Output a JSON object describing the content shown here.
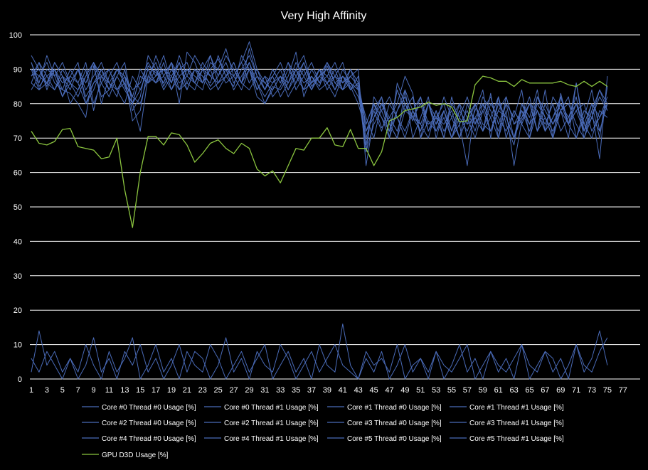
{
  "chart_data": {
    "type": "line",
    "title": "Very High Affinity",
    "xlabel": "",
    "ylabel": "",
    "ylim": [
      0,
      100
    ],
    "yticks": [
      0,
      10,
      20,
      30,
      40,
      50,
      60,
      70,
      80,
      90,
      100
    ],
    "xlim": [
      1,
      77
    ],
    "xticks": [
      1,
      3,
      5,
      7,
      9,
      11,
      13,
      15,
      17,
      19,
      21,
      23,
      25,
      27,
      29,
      31,
      33,
      35,
      37,
      39,
      41,
      43,
      45,
      47,
      49,
      51,
      53,
      55,
      57,
      59,
      61,
      63,
      65,
      67,
      69,
      71,
      73,
      75,
      77
    ],
    "grid": "horizontal",
    "legend_position": "bottom",
    "background": "#000000",
    "colors": {
      "core": "#4a6bb8",
      "gpu": "#8bc53f",
      "grid": "#ffffff",
      "text": "#ffffff"
    },
    "x": [
      1,
      2,
      3,
      4,
      5,
      6,
      7,
      8,
      9,
      10,
      11,
      12,
      13,
      14,
      15,
      16,
      17,
      18,
      19,
      20,
      21,
      22,
      23,
      24,
      25,
      26,
      27,
      28,
      29,
      30,
      31,
      32,
      33,
      34,
      35,
      36,
      37,
      38,
      39,
      40,
      41,
      42,
      43,
      44,
      45,
      46,
      47,
      48,
      49,
      50,
      51,
      52,
      53,
      54,
      55,
      56,
      57,
      58,
      59,
      60,
      61,
      62,
      63,
      64,
      65,
      66,
      67,
      68,
      69,
      70,
      71,
      72,
      73,
      74,
      75
    ],
    "series": [
      {
        "name": "Core #0 Thread #0 Usage [%]",
        "color": "#4a6bb8",
        "values": [
          92,
          85,
          88,
          90,
          84,
          83,
          80,
          76,
          91,
          82,
          84,
          90,
          88,
          75,
          78,
          91,
          89,
          86,
          92,
          80,
          95,
          92,
          86,
          90,
          93,
          88,
          85,
          94,
          90,
          82,
          80,
          85,
          84,
          88,
          95,
          82,
          88,
          85,
          91,
          86,
          84,
          88,
          85,
          68,
          80,
          73,
          76,
          80,
          88,
          83,
          70,
          75,
          72,
          78,
          70,
          74,
          62,
          80,
          72,
          83,
          70,
          78,
          62,
          75,
          80,
          72,
          84,
          70,
          83,
          74,
          86,
          72,
          78,
          64,
          88
        ]
      },
      {
        "name": "Core #0 Thread #1 Usage [%]",
        "color": "#4a6bb8",
        "values": [
          88,
          90,
          85,
          92,
          88,
          80,
          84,
          90,
          78,
          88,
          86,
          82,
          90,
          80,
          72,
          88,
          92,
          85,
          90,
          86,
          88,
          94,
          90,
          85,
          88,
          94,
          90,
          86,
          92,
          84,
          88,
          82,
          85,
          90,
          86,
          92,
          85,
          88,
          92,
          86,
          88,
          85,
          80,
          72,
          78,
          82,
          70,
          86,
          80,
          75,
          82,
          72,
          78,
          70,
          80,
          76,
          72,
          78,
          84,
          70,
          82,
          74,
          68,
          80,
          76,
          84,
          72,
          82,
          78,
          70,
          86,
          74,
          80,
          70,
          85
        ]
      },
      {
        "name": "Core #1 Thread #0 Usage [%]",
        "color": "#4a6bb8",
        "values": [
          86,
          92,
          88,
          84,
          90,
          86,
          82,
          88,
          92,
          80,
          88,
          92,
          85,
          80,
          88,
          86,
          94,
          88,
          84,
          90,
          92,
          86,
          90,
          94,
          86,
          90,
          88,
          92,
          86,
          90,
          84,
          88,
          82,
          86,
          92,
          88,
          84,
          90,
          86,
          88,
          92,
          84,
          88,
          66,
          82,
          78,
          72,
          84,
          78,
          82,
          70,
          80,
          74,
          82,
          76,
          70,
          80,
          74,
          82,
          78,
          72,
          80,
          76,
          84,
          70,
          82,
          78,
          74,
          80,
          76,
          82,
          70,
          78,
          84,
          80
        ]
      },
      {
        "name": "Core #1 Thread #1 Usage [%]",
        "color": "#4a6bb8",
        "values": [
          90,
          84,
          86,
          90,
          82,
          88,
          86,
          80,
          84,
          90,
          86,
          84,
          80,
          88,
          84,
          90,
          86,
          92,
          84,
          88,
          90,
          86,
          84,
          92,
          90,
          86,
          88,
          84,
          90,
          86,
          82,
          86,
          88,
          84,
          90,
          86,
          88,
          84,
          86,
          90,
          84,
          86,
          82,
          74,
          80,
          76,
          70,
          78,
          84,
          70,
          76,
          82,
          70,
          78,
          72,
          80,
          76,
          70,
          78,
          82,
          74,
          80,
          70,
          76,
          82,
          72,
          80,
          74,
          78,
          82,
          70,
          76,
          84,
          72,
          80
        ]
      },
      {
        "name": "Core #2 Thread #0 Usage [%]",
        "color": "#4a6bb8",
        "values": [
          84,
          88,
          92,
          86,
          84,
          90,
          86,
          92,
          80,
          86,
          90,
          84,
          88,
          82,
          90,
          86,
          88,
          94,
          86,
          92,
          84,
          90,
          88,
          86,
          94,
          88,
          92,
          86,
          96,
          88,
          84,
          90,
          86,
          92,
          84,
          88,
          92,
          86,
          88,
          84,
          90,
          86,
          84,
          76,
          70,
          80,
          76,
          72,
          80,
          76,
          74,
          70,
          78,
          72,
          76,
          80,
          70,
          76,
          72,
          80,
          76,
          72,
          78,
          74,
          70,
          78,
          74,
          80,
          72,
          76,
          80,
          74,
          70,
          78,
          76
        ]
      },
      {
        "name": "Core #2 Thread #1 Usage [%]",
        "color": "#4a6bb8",
        "values": [
          92,
          86,
          94,
          88,
          92,
          86,
          90,
          84,
          88,
          92,
          86,
          90,
          88,
          84,
          86,
          92,
          88,
          90,
          86,
          94,
          88,
          86,
          92,
          88,
          90,
          96,
          88,
          92,
          98,
          90,
          86,
          88,
          92,
          86,
          90,
          94,
          86,
          90,
          88,
          92,
          86,
          88,
          90,
          62,
          76,
          82,
          74,
          70,
          84,
          78,
          72,
          80,
          76,
          70,
          82,
          74,
          78,
          72,
          80,
          76,
          70,
          82,
          74,
          78,
          72,
          80,
          76,
          70,
          82,
          74,
          78,
          72,
          80,
          76,
          82
        ]
      },
      {
        "name": "Core #3 Thread #0 Usage [%]",
        "color": "#4a6bb8",
        "values": [
          88,
          92,
          84,
          90,
          86,
          88,
          92,
          80,
          86,
          90,
          84,
          88,
          92,
          80,
          84,
          90,
          86,
          88,
          92,
          84,
          90,
          88,
          86,
          90,
          84,
          88,
          92,
          86,
          90,
          84,
          88,
          86,
          90,
          84,
          88,
          92,
          86,
          90,
          84,
          88,
          86,
          90,
          84,
          70,
          78,
          72,
          80,
          76,
          70,
          78,
          74,
          80,
          72,
          76,
          70,
          78,
          74,
          80,
          72,
          76,
          82,
          70,
          78,
          74,
          80,
          72,
          76,
          70,
          78,
          74,
          80,
          72,
          76,
          84,
          78
        ]
      },
      {
        "name": "Core #3 Thread #1 Usage [%]",
        "color": "#4a6bb8",
        "values": [
          94,
          90,
          86,
          92,
          88,
          84,
          90,
          86,
          92,
          88,
          84,
          90,
          86,
          78,
          82,
          94,
          90,
          86,
          92,
          88,
          84,
          90,
          86,
          94,
          88,
          92,
          86,
          90,
          94,
          88,
          84,
          90,
          86,
          92,
          88,
          84,
          90,
          86,
          92,
          88,
          84,
          90,
          86,
          74,
          80,
          76,
          72,
          78,
          82,
          76,
          72,
          80,
          74,
          78,
          70,
          76,
          82,
          74,
          78,
          72,
          80,
          76,
          70,
          78,
          74,
          82,
          76,
          72,
          78,
          80,
          74,
          70,
          76,
          82,
          78
        ]
      },
      {
        "name": "Core #4 Thread #0 Usage [%]",
        "color": "#4a6bb8",
        "values": [
          86,
          84,
          90,
          88,
          82,
          86,
          84,
          88,
          92,
          86,
          82,
          88,
          84,
          80,
          88,
          86,
          90,
          84,
          88,
          92,
          86,
          84,
          90,
          88,
          86,
          90,
          84,
          88,
          92,
          86,
          80,
          84,
          88,
          82,
          86,
          90,
          84,
          88,
          86,
          82,
          88,
          84,
          86,
          72,
          76,
          80,
          74,
          70,
          78,
          76,
          80,
          72,
          76,
          74,
          78,
          70,
          76,
          80,
          74,
          72,
          78,
          76,
          70,
          80,
          74,
          78,
          72,
          76,
          80,
          74,
          70,
          78,
          76,
          72,
          80
        ]
      },
      {
        "name": "Core #4 Thread #1 Usage [%]",
        "color": "#4a6bb8",
        "values": [
          90,
          88,
          86,
          84,
          88,
          86,
          90,
          82,
          86,
          88,
          90,
          84,
          86,
          82,
          80,
          88,
          86,
          90,
          88,
          84,
          86,
          90,
          88,
          84,
          86,
          88,
          90,
          86,
          84,
          88,
          86,
          84,
          88,
          86,
          90,
          84,
          86,
          88,
          90,
          84,
          88,
          86,
          84,
          66,
          74,
          78,
          82,
          76,
          72,
          78,
          82,
          74,
          76,
          80,
          72,
          78,
          74,
          76,
          80,
          72,
          78,
          82,
          74,
          76,
          80,
          78,
          72,
          76,
          82,
          74,
          78,
          80,
          72,
          76,
          80
        ]
      },
      {
        "name": "Core #5 Thread #0 Usage [%]",
        "color": "#4a6bb8",
        "values": [
          6,
          2,
          8,
          4,
          0,
          6,
          2,
          10,
          4,
          0,
          8,
          2,
          6,
          12,
          0,
          4,
          10,
          2,
          6,
          0,
          8,
          4,
          2,
          10,
          6,
          0,
          4,
          8,
          2,
          6,
          10,
          0,
          4,
          8,
          2,
          6,
          0,
          10,
          4,
          2,
          16,
          4,
          0,
          6,
          2,
          8,
          0,
          4,
          10,
          2,
          6,
          0,
          8,
          4,
          2,
          6,
          10,
          0,
          4,
          8,
          2,
          6,
          0,
          10,
          4,
          2,
          8,
          6,
          0,
          4,
          10,
          2,
          6,
          14,
          4
        ]
      },
      {
        "name": "Core #5 Thread #1 Usage [%]",
        "color": "#4a6bb8",
        "values": [
          2,
          14,
          4,
          8,
          2,
          6,
          0,
          4,
          12,
          2,
          6,
          0,
          8,
          4,
          10,
          2,
          6,
          0,
          4,
          10,
          2,
          8,
          6,
          0,
          4,
          12,
          2,
          6,
          0,
          8,
          4,
          2,
          10,
          6,
          0,
          4,
          8,
          2,
          6,
          10,
          4,
          2,
          0,
          8,
          4,
          6,
          2,
          10,
          0,
          4,
          6,
          2,
          8,
          0,
          4,
          10,
          2,
          6,
          0,
          8,
          4,
          2,
          6,
          10,
          0,
          4,
          8,
          2,
          6,
          0,
          10,
          4,
          2,
          8,
          12
        ]
      },
      {
        "name": "GPU D3D Usage [%]",
        "color": "#8bc53f",
        "values": [
          72,
          68.5,
          68,
          69,
          72.5,
          72.8,
          67.5,
          67,
          66.5,
          64,
          64.5,
          70,
          55,
          44,
          60,
          70.5,
          70.5,
          68,
          71.5,
          71,
          68,
          63,
          65.5,
          68.5,
          69.5,
          67,
          65.5,
          68.5,
          67,
          61,
          59,
          60.5,
          57,
          62,
          67,
          66.5,
          70,
          70,
          73,
          68,
          67.5,
          72.5,
          67,
          67,
          62,
          66,
          75,
          76,
          78,
          78.5,
          79,
          80.5,
          79.5,
          80,
          79,
          74.8,
          75,
          85.5,
          88,
          87.5,
          86.5,
          86.5,
          85,
          87,
          86,
          86,
          86,
          86,
          86.5,
          85.5,
          85,
          86.5,
          85,
          86.5,
          85
        ]
      }
    ],
    "legend": [
      "Core #0 Thread #0 Usage [%]",
      "Core #0 Thread #1 Usage [%]",
      "Core #1 Thread #0 Usage [%]",
      "Core #1 Thread #1 Usage [%]",
      "Core #2 Thread #0 Usage [%]",
      "Core #2 Thread #1 Usage [%]",
      "Core #3 Thread #0 Usage [%]",
      "Core #3 Thread #1 Usage [%]",
      "Core #4 Thread #0 Usage [%]",
      "Core #4 Thread #1 Usage [%]",
      "Core #5 Thread #0 Usage [%]",
      "Core #5 Thread #1 Usage [%]",
      "GPU D3D Usage [%]"
    ]
  }
}
